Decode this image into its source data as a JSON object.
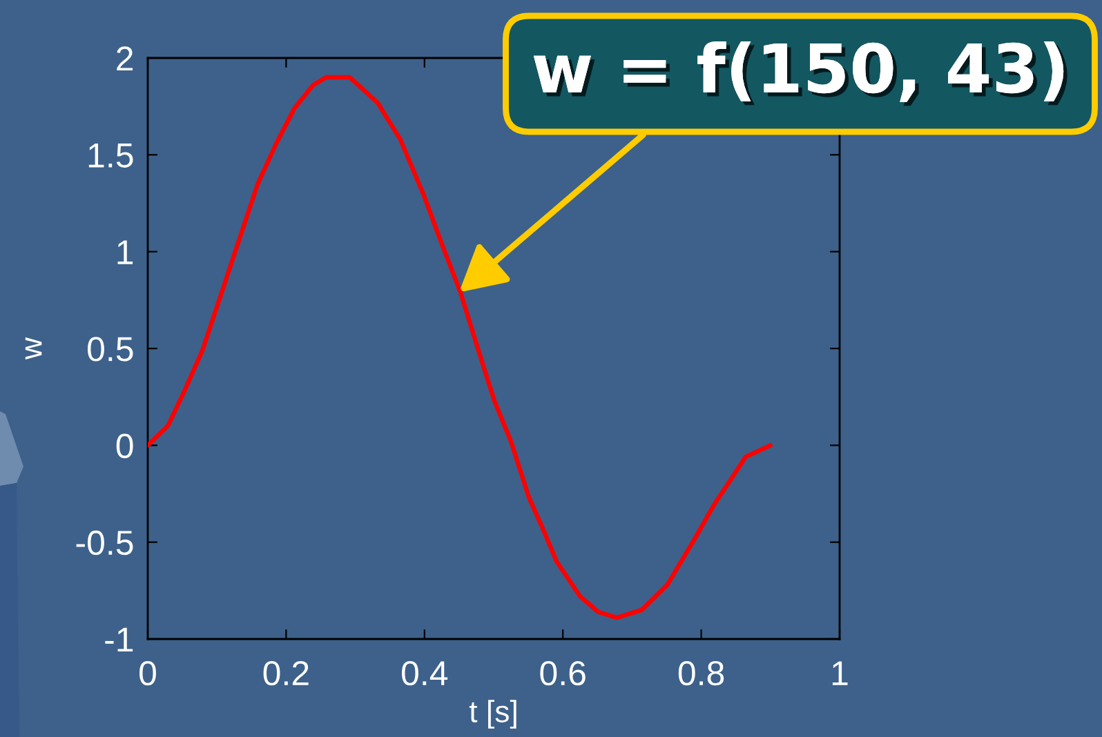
{
  "chart_data": {
    "type": "line",
    "xlabel": "t [s]",
    "ylabel": "w",
    "x": [
      0,
      0.029,
      0.053,
      0.079,
      0.106,
      0.132,
      0.159,
      0.186,
      0.212,
      0.239,
      0.258,
      0.292,
      0.332,
      0.365,
      0.398,
      0.425,
      0.452,
      0.478,
      0.501,
      0.525,
      0.551,
      0.571,
      0.591,
      0.625,
      0.651,
      0.678,
      0.714,
      0.751,
      0.791,
      0.818,
      0.844,
      0.864,
      0.9
    ],
    "series": [
      {
        "color": "#ff0000",
        "values": [
          0,
          0.1,
          0.28,
          0.49,
          0.78,
          1.06,
          1.35,
          1.56,
          1.74,
          1.86,
          1.9,
          1.9,
          1.77,
          1.58,
          1.3,
          1.04,
          0.79,
          0.49,
          0.23,
          0.02,
          -0.27,
          -0.43,
          -0.6,
          -0.78,
          -0.86,
          -0.89,
          -0.85,
          -0.72,
          -0.48,
          -0.31,
          -0.17,
          -0.06,
          0
        ]
      }
    ],
    "xlim": [
      0,
      1
    ],
    "ylim": [
      -1,
      2
    ],
    "xticks": [
      0,
      0.2,
      0.4,
      0.6,
      0.8,
      1
    ],
    "yticks": [
      -1,
      -0.5,
      0,
      0.5,
      1,
      1.5,
      2
    ],
    "annotations": [
      {
        "text": "w = f(150, 43)",
        "x": 0.45,
        "y": 0.79
      }
    ],
    "grid": false,
    "line_style": "solid"
  }
}
